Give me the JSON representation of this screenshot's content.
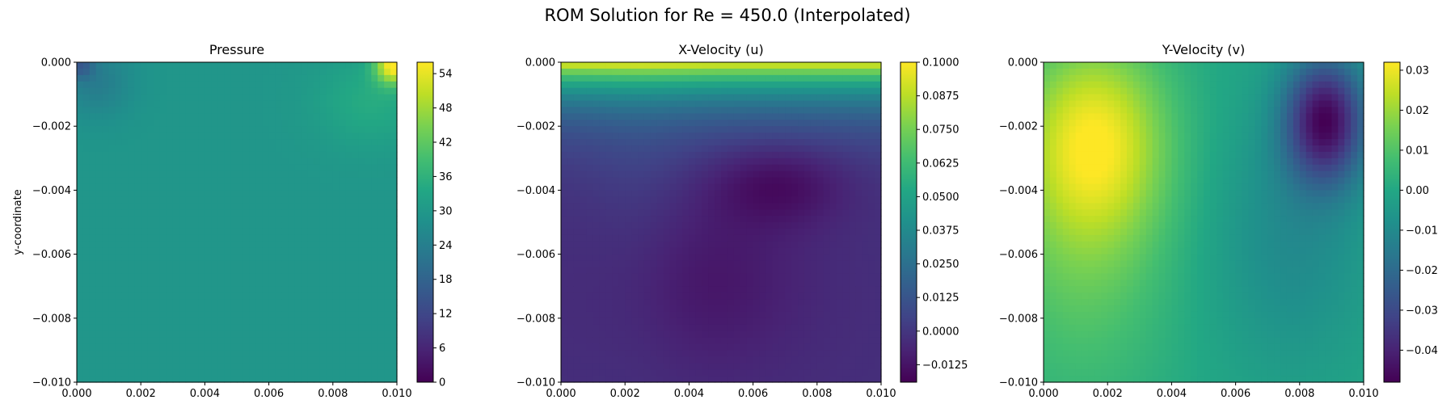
{
  "figure": {
    "suptitle": "ROM Solution for Re = 450.0 (Interpolated)"
  },
  "chart_data": [
    {
      "type": "heatmap",
      "title": "Pressure",
      "ylabel": "y-coordinate",
      "xlabel": "",
      "x_ticks": [
        "0.000",
        "0.002",
        "0.004",
        "0.006",
        "0.008",
        "0.010"
      ],
      "y_ticks": [
        "0.000",
        "−0.002",
        "−0.004",
        "−0.006",
        "−0.008",
        "−0.010"
      ],
      "xlim": [
        0,
        0.01
      ],
      "ylim": [
        -0.01,
        0
      ],
      "colormap": "viridis",
      "colorbar": {
        "min": 0,
        "max": 56,
        "ticks": [
          "0",
          "6",
          "12",
          "18",
          "24",
          "30",
          "36",
          "42",
          "48",
          "54"
        ]
      },
      "field": {
        "base": 29.5,
        "features": [
          {
            "x": 0.0099,
            "y": -0.0001,
            "sx": 0.0004,
            "sy": 0.0004,
            "amp": 26
          },
          {
            "x": 0.0092,
            "y": -0.0012,
            "sx": 0.0012,
            "sy": 0.001,
            "amp": 5
          },
          {
            "x": 0.0006,
            "y": -0.0006,
            "sx": 0.0008,
            "sy": 0.0008,
            "amp": -6
          },
          {
            "x": 0.0001,
            "y": -0.0001,
            "sx": 0.0003,
            "sy": 0.0003,
            "amp": -10
          }
        ]
      }
    },
    {
      "type": "heatmap",
      "title": "X-Velocity (u)",
      "ylabel": "",
      "xlabel": "",
      "x_ticks": [
        "0.000",
        "0.002",
        "0.004",
        "0.006",
        "0.008",
        "0.010"
      ],
      "y_ticks": [
        "0.000",
        "−0.002",
        "−0.004",
        "−0.006",
        "−0.008",
        "−0.010"
      ],
      "xlim": [
        0,
        0.01
      ],
      "ylim": [
        -0.01,
        0
      ],
      "colormap": "viridis",
      "colorbar": {
        "min": -0.019,
        "max": 0.1,
        "ticks": [
          "−0.0125",
          "0.0000",
          "0.0125",
          "0.0250",
          "0.0375",
          "0.0500",
          "0.0625",
          "0.0750",
          "0.0875",
          "0.1000"
        ]
      },
      "field": {
        "base": -0.003,
        "features": [
          {
            "x": 0.0068,
            "y": -0.0038,
            "sx": 0.0015,
            "sy": 0.0009,
            "amp": -0.014
          },
          {
            "x": 0.0045,
            "y": -0.0068,
            "sx": 0.0022,
            "sy": 0.002,
            "amp": -0.009
          },
          {
            "x": 0.0025,
            "y": -0.0045,
            "sx": 0.0012,
            "sy": 0.0035,
            "amp": 0.004
          }
        ],
        "lid": {
          "value": 0.1,
          "decay": 0.0011
        }
      }
    },
    {
      "type": "heatmap",
      "title": "Y-Velocity (v)",
      "ylabel": "",
      "xlabel": "",
      "x_ticks": [
        "0.000",
        "0.002",
        "0.004",
        "0.006",
        "0.008",
        "0.010"
      ],
      "y_ticks": [
        "0.000",
        "−0.002",
        "−0.004",
        "−0.006",
        "−0.008",
        "−0.010"
      ],
      "xlim": [
        0,
        0.01
      ],
      "ylim": [
        -0.01,
        0
      ],
      "colormap": "viridis",
      "colorbar": {
        "min": -0.048,
        "max": 0.032,
        "ticks": [
          "−0.04",
          "−0.03",
          "−0.02",
          "−0.01",
          "0.00",
          "0.01",
          "0.02",
          "0.03"
        ]
      },
      "field": {
        "base": 0.0,
        "features": [
          {
            "x": 0.0016,
            "y": -0.0024,
            "sx": 0.0016,
            "sy": 0.0022,
            "amp": 0.027
          },
          {
            "x": 0.0012,
            "y": -0.006,
            "sx": 0.002,
            "sy": 0.0035,
            "amp": 0.011
          },
          {
            "x": 0.0088,
            "y": -0.0018,
            "sx": 0.0009,
            "sy": 0.0014,
            "amp": -0.044
          },
          {
            "x": 0.0078,
            "y": -0.0055,
            "sx": 0.0018,
            "sy": 0.003,
            "amp": -0.01
          }
        ]
      }
    }
  ]
}
